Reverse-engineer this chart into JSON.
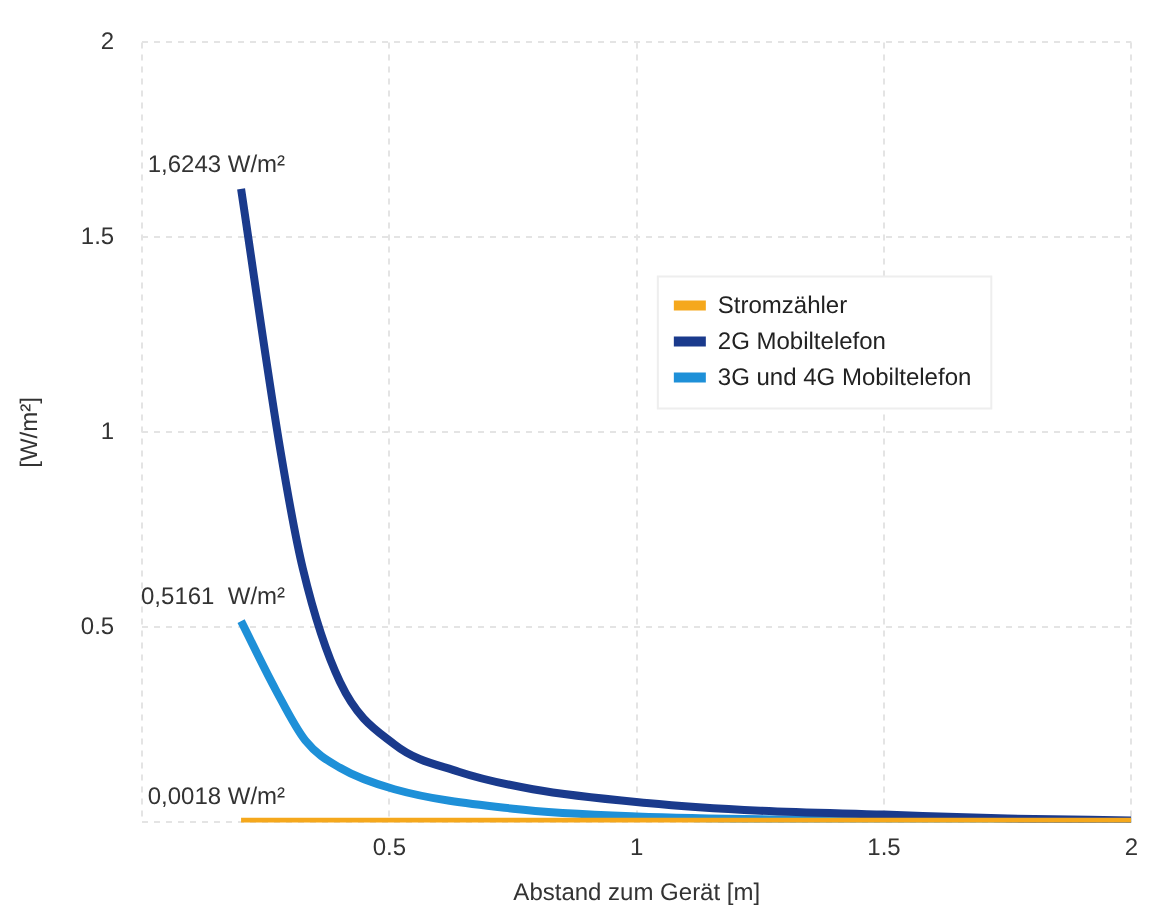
{
  "chart_data": {
    "type": "line",
    "xlabel": "Abstand zum Gerät [m]",
    "ylabel": "[W/m²]",
    "xlim": [
      0,
      2
    ],
    "xticks": [
      {
        "value": 0,
        "label": null
      },
      0.5,
      1,
      1.5,
      2
    ],
    "ylim": [
      0,
      2
    ],
    "yticks": [
      {
        "value": 0,
        "label": null
      },
      0.5,
      1,
      1.5,
      2
    ],
    "grid": true,
    "legend": "right",
    "marker": "none",
    "line_style": "solid",
    "series": [
      {
        "name": "Stromzähler",
        "color": "#f5a81c",
        "x": [
          0.2,
          0.5,
          1,
          1.5,
          2
        ],
        "values": [
          0.0018,
          0.0018,
          0.0018,
          0.0018,
          0.0018
        ],
        "value_labels": [
          "0,0018 W/m²",
          null,
          null,
          null,
          null
        ]
      },
      {
        "name": "2G Mobiltelefon",
        "color": "#1a3a8c",
        "x": [
          0.2,
          0.28,
          0.325,
          0.4,
          0.51,
          0.64,
          0.79,
          1.02,
          1.25,
          1.5,
          1.75,
          2
        ],
        "values": [
          1.6243,
          0.95,
          0.65,
          0.36,
          0.2,
          0.13,
          0.085,
          0.05,
          0.03,
          0.02,
          0.01,
          0.005
        ],
        "value_labels": [
          "1,6243 W/m²",
          null,
          null,
          null,
          null,
          null,
          null,
          null,
          null,
          null,
          null,
          null
        ]
      },
      {
        "name": "3G und 4G Mobiltelefon",
        "color": "#1e90d8",
        "x": [
          0.2,
          0.27,
          0.33,
          0.4,
          0.51,
          0.75,
          1,
          1.5,
          2
        ],
        "values": [
          0.5161,
          0.34,
          0.21,
          0.14,
          0.085,
          0.035,
          0.015,
          0.005,
          0.002
        ],
        "value_labels": [
          "0,5161  W/m²",
          null,
          null,
          null,
          null,
          null,
          null,
          null,
          null
        ]
      }
    ]
  }
}
